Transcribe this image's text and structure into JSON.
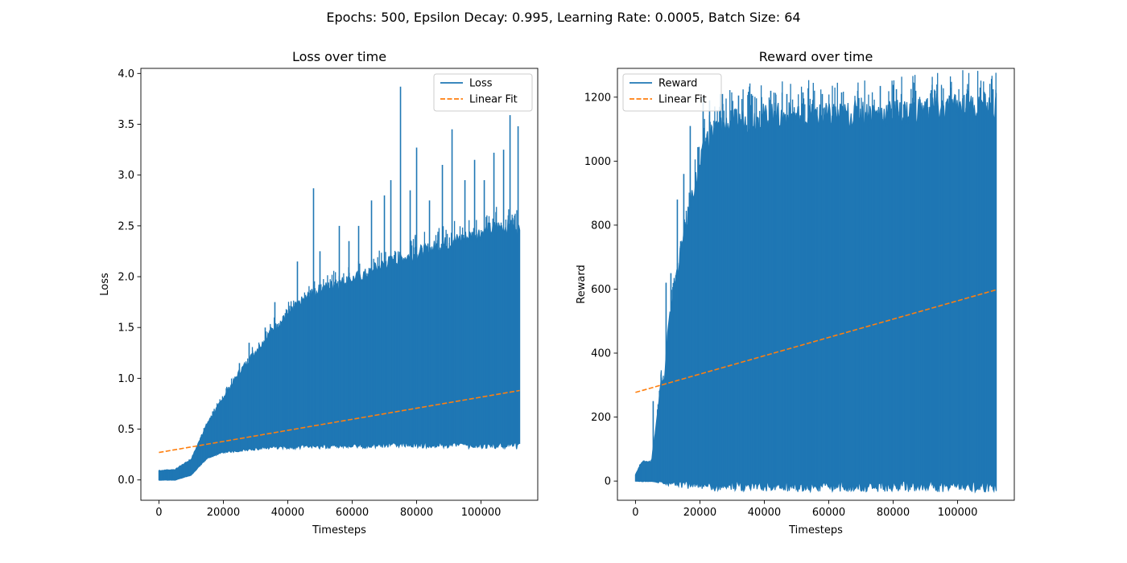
{
  "figure_title": "Epochs: 500, Epsilon Decay: 0.995, Learning Rate: 0.0005, Batch Size: 64",
  "chart_data": [
    {
      "type": "line",
      "title": "Loss over time",
      "xlabel": "Timesteps",
      "ylabel": "Loss",
      "xlim": [
        -5600,
        117600
      ],
      "ylim": [
        -0.2,
        4.05
      ],
      "xticks": [
        0,
        20000,
        40000,
        60000,
        80000,
        100000
      ],
      "xtick_labels": [
        "0",
        "20000",
        "40000",
        "60000",
        "80000",
        "100000"
      ],
      "yticks": [
        0.0,
        0.5,
        1.0,
        1.5,
        2.0,
        2.5,
        3.0,
        3.5,
        4.0
      ],
      "ytick_labels": [
        "0.0",
        "0.5",
        "1.0",
        "1.5",
        "2.0",
        "2.5",
        "3.0",
        "3.5",
        "4.0"
      ],
      "legend_position": "upper-right",
      "grid": false,
      "series": [
        {
          "name": "Loss",
          "style": "band",
          "color": "#1f77b4",
          "x": [
            0,
            5000,
            10000,
            15000,
            20000,
            25000,
            30000,
            35000,
            40000,
            45000,
            50000,
            55000,
            60000,
            65000,
            70000,
            75000,
            80000,
            85000,
            90000,
            95000,
            100000,
            105000,
            110000,
            112000
          ],
          "upper": [
            0.09,
            0.1,
            0.2,
            0.55,
            0.8,
            1.05,
            1.25,
            1.45,
            1.6,
            1.75,
            1.85,
            1.9,
            1.95,
            2.0,
            2.1,
            2.15,
            2.2,
            2.25,
            2.3,
            2.35,
            2.4,
            2.45,
            2.45,
            2.4
          ],
          "lower": [
            0.0,
            0.0,
            0.05,
            0.22,
            0.28,
            0.3,
            0.32,
            0.34,
            0.34,
            0.35,
            0.35,
            0.36,
            0.36,
            0.36,
            0.37,
            0.37,
            0.37,
            0.37,
            0.37,
            0.37,
            0.37,
            0.37,
            0.37,
            0.36
          ],
          "spikes": [
            [
              25000,
              1.15
            ],
            [
              28000,
              1.35
            ],
            [
              33000,
              1.5
            ],
            [
              36000,
              1.75
            ],
            [
              43000,
              2.15
            ],
            [
              48000,
              2.87
            ],
            [
              50000,
              2.25
            ],
            [
              56000,
              2.5
            ],
            [
              59000,
              2.35
            ],
            [
              62000,
              2.5
            ],
            [
              66000,
              2.75
            ],
            [
              70000,
              2.8
            ],
            [
              72000,
              2.95
            ],
            [
              75000,
              3.87
            ],
            [
              78000,
              2.85
            ],
            [
              80000,
              3.27
            ],
            [
              84000,
              2.75
            ],
            [
              88000,
              3.1
            ],
            [
              91000,
              3.45
            ],
            [
              95000,
              2.95
            ],
            [
              98000,
              3.15
            ],
            [
              101000,
              2.95
            ],
            [
              104000,
              3.22
            ],
            [
              107000,
              3.25
            ],
            [
              109000,
              3.59
            ],
            [
              111500,
              3.48
            ]
          ]
        },
        {
          "name": "Linear Fit",
          "style": "dashed",
          "color": "#ff7f0e",
          "x": [
            0,
            112000
          ],
          "y": [
            0.27,
            0.88
          ]
        }
      ]
    },
    {
      "type": "line",
      "title": "Reward over time",
      "xlabel": "Timesteps",
      "ylabel": "Reward",
      "xlim": [
        -5600,
        117600
      ],
      "ylim": [
        -60,
        1290
      ],
      "xticks": [
        0,
        20000,
        40000,
        60000,
        80000,
        100000
      ],
      "xtick_labels": [
        "0",
        "20000",
        "40000",
        "60000",
        "80000",
        "100000"
      ],
      "yticks": [
        0,
        200,
        400,
        600,
        800,
        1000,
        1200
      ],
      "ytick_labels": [
        "0",
        "200",
        "400",
        "600",
        "800",
        "1000",
        "1200"
      ],
      "legend_position": "upper-left",
      "grid": false,
      "series": [
        {
          "name": "Reward",
          "style": "band",
          "color": "#1f77b4",
          "x": [
            0,
            2000,
            5000,
            8000,
            9000,
            10000,
            12000,
            14000,
            16000,
            18000,
            20000,
            22000,
            25000,
            30000,
            40000,
            50000,
            60000,
            70000,
            80000,
            90000,
            100000,
            110000,
            112000
          ],
          "upper": [
            20,
            60,
            60,
            310,
            310,
            450,
            600,
            700,
            800,
            900,
            960,
            1050,
            1080,
            1100,
            1120,
            1120,
            1120,
            1130,
            1130,
            1140,
            1150,
            1150,
            1150
          ],
          "lower": [
            0,
            0,
            0,
            0,
            0,
            0,
            0,
            0,
            0,
            0,
            0,
            0,
            0,
            0,
            0,
            0,
            0,
            0,
            0,
            0,
            0,
            0,
            0
          ],
          "spikes": [
            [
              5500,
              250
            ],
            [
              9500,
              620
            ],
            [
              11000,
              650
            ],
            [
              13000,
              880
            ],
            [
              15000,
              960
            ],
            [
              17000,
              1110
            ],
            [
              21000,
              1200
            ],
            [
              23000,
              1190
            ],
            [
              27000,
              1210
            ],
            [
              32000,
              1205
            ],
            [
              36000,
              1210
            ],
            [
              42000,
              1220
            ],
            [
              47000,
              1210
            ],
            [
              52000,
              1215
            ],
            [
              58000,
              1210
            ],
            [
              64000,
              1215
            ],
            [
              69000,
              1220
            ],
            [
              76000,
              1235
            ],
            [
              81000,
              1225
            ],
            [
              87000,
              1220
            ],
            [
              93000,
              1220
            ],
            [
              98000,
              1230
            ],
            [
              103000,
              1225
            ],
            [
              107000,
              1230
            ],
            [
              111000,
              1225
            ]
          ]
        },
        {
          "name": "Linear Fit",
          "style": "dashed",
          "color": "#ff7f0e",
          "x": [
            0,
            112000
          ],
          "y": [
            277,
            598
          ]
        }
      ]
    }
  ]
}
